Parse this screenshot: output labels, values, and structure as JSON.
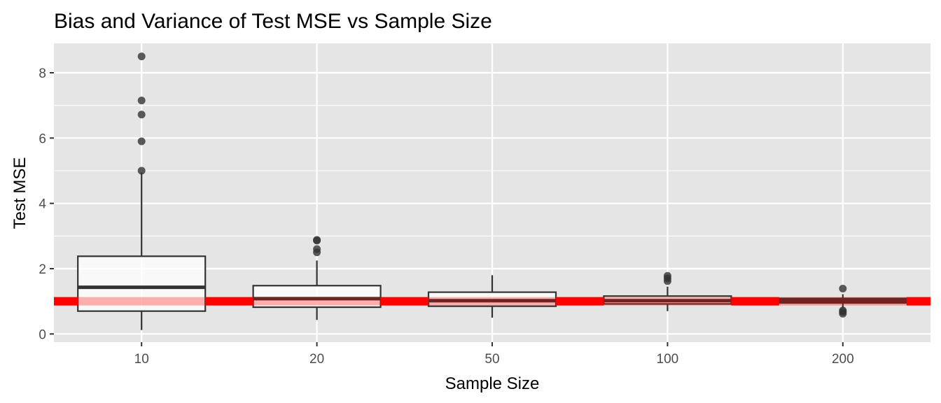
{
  "chart_data": {
    "type": "boxplot",
    "title": "Bias and Variance of Test MSE vs Sample Size",
    "xlabel": "Sample Size",
    "ylabel": "Test MSE",
    "categories": [
      "10",
      "20",
      "50",
      "100",
      "200"
    ],
    "ylim": [
      -0.25,
      8.9
    ],
    "yticks": [
      0,
      2,
      4,
      6,
      8
    ],
    "grid": true,
    "legend": "none",
    "reference_line": {
      "y": 1.0,
      "color": "#ff0000"
    },
    "boxes": [
      {
        "category": "10",
        "lower_whisker": 0.12,
        "q1": 0.7,
        "median": 1.43,
        "q3": 2.38,
        "upper_whisker": 4.95,
        "outliers": [
          5.0,
          5.9,
          6.72,
          7.15,
          8.5
        ]
      },
      {
        "category": "20",
        "lower_whisker": 0.43,
        "q1": 0.82,
        "median": 1.08,
        "q3": 1.48,
        "upper_whisker": 2.25,
        "outliers": [
          2.5,
          2.6,
          2.86,
          2.88
        ]
      },
      {
        "category": "50",
        "lower_whisker": 0.5,
        "q1": 0.85,
        "median": 1.02,
        "q3": 1.28,
        "upper_whisker": 1.8,
        "outliers": []
      },
      {
        "category": "100",
        "lower_whisker": 0.7,
        "q1": 0.92,
        "median": 1.02,
        "q3": 1.16,
        "upper_whisker": 1.45,
        "outliers": [
          1.62,
          1.7,
          1.78
        ]
      },
      {
        "category": "200",
        "lower_whisker": 0.8,
        "q1": 0.95,
        "median": 1.02,
        "q3": 1.09,
        "upper_whisker": 1.22,
        "outliers": [
          0.62,
          0.68,
          0.72,
          1.39
        ]
      }
    ],
    "colors": {
      "panel_background": "#e5e5e5",
      "grid": "#ffffff",
      "box_fill": "#ffffff",
      "box_outline": "#333333",
      "outlier": "#333333",
      "reference_line": "#ff0000"
    }
  }
}
